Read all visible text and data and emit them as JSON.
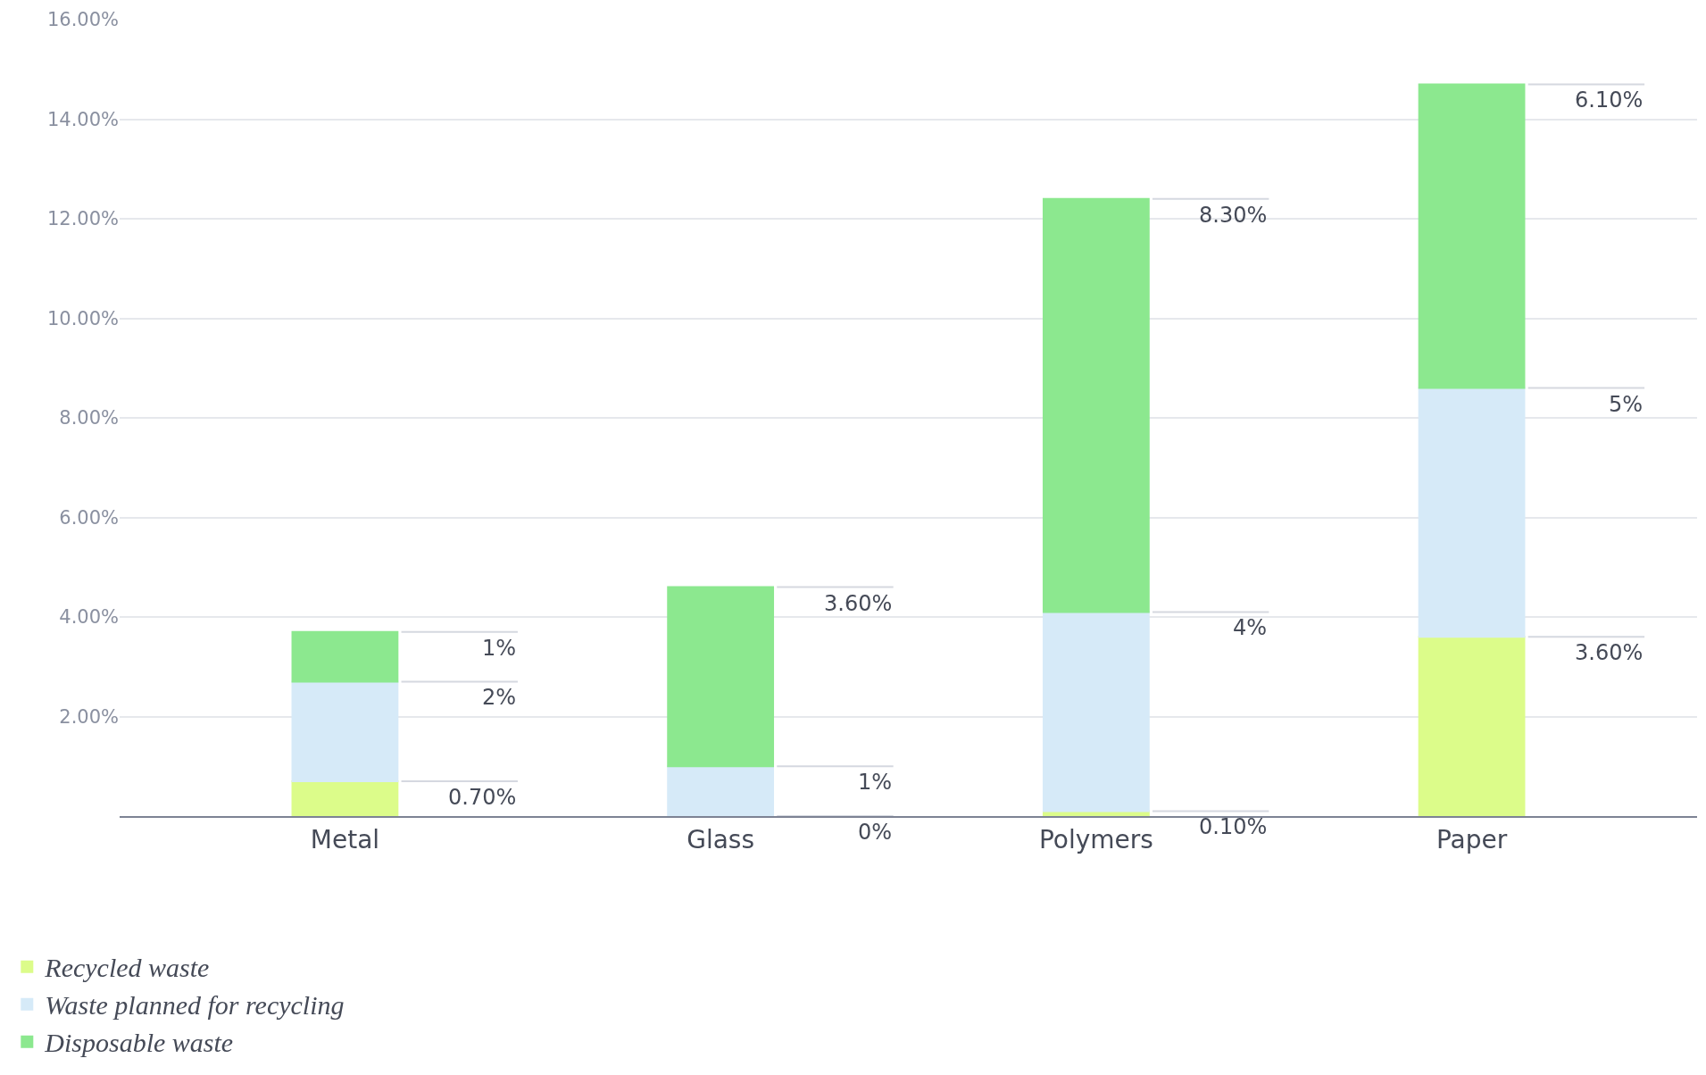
{
  "chart_data": {
    "type": "bar",
    "stacked": true,
    "categories": [
      "Metal",
      "Glass",
      "Polymers",
      "Paper"
    ],
    "series": [
      {
        "name": "Recycled waste",
        "color": "#dcfc8a",
        "values": [
          0.7,
          0,
          0.1,
          3.6
        ],
        "value_labels": [
          "0.70%",
          "0%",
          "0.10%",
          "3.60%"
        ]
      },
      {
        "name": "Waste planned for recycling",
        "color": "#d6eaf8",
        "values": [
          2,
          1,
          4,
          5
        ],
        "value_labels": [
          "2%",
          "1%",
          "4%",
          "5%"
        ]
      },
      {
        "name": "Disposable waste",
        "color": "#8ce88f",
        "values": [
          1,
          3.6,
          8.3,
          6.1
        ],
        "value_labels": [
          "1%",
          "3.60%",
          "8.30%",
          "6.10%"
        ]
      }
    ],
    "ylim": [
      0,
      16
    ],
    "yticks": [
      {
        "value": 2,
        "label": "2.00%"
      },
      {
        "value": 4,
        "label": "4.00%"
      },
      {
        "value": 6,
        "label": "6.00%"
      },
      {
        "value": 8,
        "label": "8.00%"
      },
      {
        "value": 10,
        "label": "10.00%"
      },
      {
        "value": 12,
        "label": "12.00%"
      },
      {
        "value": 14,
        "label": "14.00%"
      },
      {
        "value": 16,
        "label": "16.00%"
      }
    ],
    "grid": "y",
    "legend": "bottom left"
  }
}
